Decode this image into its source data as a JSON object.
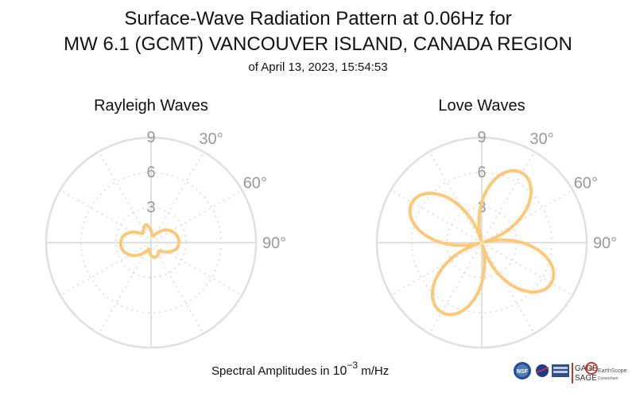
{
  "title_line1": "Surface-Wave Radiation Pattern at 0.06Hz for",
  "title_line2": "MW 6.1 (GCMT) VANCOUVER ISLAND, CANADA REGION",
  "subtitle": "of April 13, 2023, 15:54:53",
  "footer": {
    "prefix": "Spectral Amplitudes in ",
    "base": "10",
    "exponent": "−3",
    "unit": " m/Hz"
  },
  "logos": {
    "nsf": "NSF",
    "gage": "GAGE",
    "sage": "SAGE",
    "earthscope": "EarthScope",
    "earthscope_sub": "Consortium"
  },
  "colors": {
    "pattern": "#fcc979",
    "grid": "#e0e0e0",
    "axis_text": "#999999"
  },
  "chart_data": [
    {
      "type": "polar-line",
      "title": "Rayleigh Waves",
      "radial_ticks": [
        "3",
        "6",
        "9"
      ],
      "radial_range": [
        0,
        9
      ],
      "angle_ticks": [
        "30°",
        "60°",
        "90°"
      ],
      "angle_step_deg": 30,
      "series": [
        {
          "azimuth_deg": [
            0,
            15,
            30,
            45,
            60,
            75,
            90,
            105,
            120,
            135,
            150,
            165,
            180,
            195,
            210,
            225,
            240,
            255,
            270,
            285,
            300,
            315,
            330,
            345,
            360
          ],
          "amplitude": [
            1.0,
            0.6,
            0.9,
            1.5,
            2.0,
            2.3,
            2.4,
            2.2,
            1.6,
            1.0,
            1.2,
            1.3,
            1.1,
            0.6,
            0.9,
            1.5,
            2.1,
            2.5,
            2.6,
            2.4,
            1.8,
            1.1,
            1.3,
            1.6,
            1.0
          ]
        }
      ]
    },
    {
      "type": "polar-line",
      "title": "Love Waves",
      "radial_ticks": [
        "3",
        "6",
        "9"
      ],
      "radial_range": [
        0,
        9
      ],
      "angle_ticks": [
        "30°",
        "60°",
        "90°"
      ],
      "angle_step_deg": 30,
      "series": [
        {
          "lobe_amplitude": 6.9,
          "lobe_axes_deg": [
            30,
            120,
            210,
            300
          ],
          "pattern": "four-lobed |cos 2(θ − 30°)|"
        }
      ]
    }
  ]
}
